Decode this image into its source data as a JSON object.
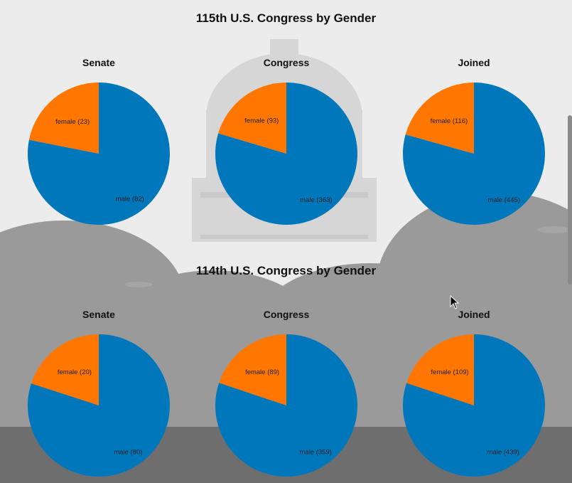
{
  "colors": {
    "male": "#0077bb",
    "female": "#ff7700",
    "background": "#ececec"
  },
  "sections": [
    {
      "title": "115th U.S. Congress by Gender"
    },
    {
      "title": "114th U.S. Congress by Gender"
    }
  ],
  "chart_data": [
    {
      "type": "pie",
      "title": "Senate",
      "categories": [
        "female",
        "male"
      ],
      "values": [
        23,
        82
      ],
      "labels": [
        "female (23)",
        "male (82)"
      ]
    },
    {
      "type": "pie",
      "title": "Congress",
      "categories": [
        "female",
        "male"
      ],
      "values": [
        93,
        363
      ],
      "labels": [
        "female (93)",
        "male (363)"
      ]
    },
    {
      "type": "pie",
      "title": "Joined",
      "categories": [
        "female",
        "male"
      ],
      "values": [
        116,
        445
      ],
      "labels": [
        "female (116)",
        "male (445)"
      ]
    },
    {
      "type": "pie",
      "title": "Senate",
      "categories": [
        "female",
        "male"
      ],
      "values": [
        20,
        80
      ],
      "labels": [
        "female (20)",
        "male (80)"
      ]
    },
    {
      "type": "pie",
      "title": "Congress",
      "categories": [
        "female",
        "male"
      ],
      "values": [
        89,
        359
      ],
      "labels": [
        "female (89)",
        "male (359)"
      ]
    },
    {
      "type": "pie",
      "title": "Joined",
      "categories": [
        "female",
        "male"
      ],
      "values": [
        109,
        439
      ],
      "labels": [
        "female (109)",
        "male (439)"
      ]
    }
  ]
}
